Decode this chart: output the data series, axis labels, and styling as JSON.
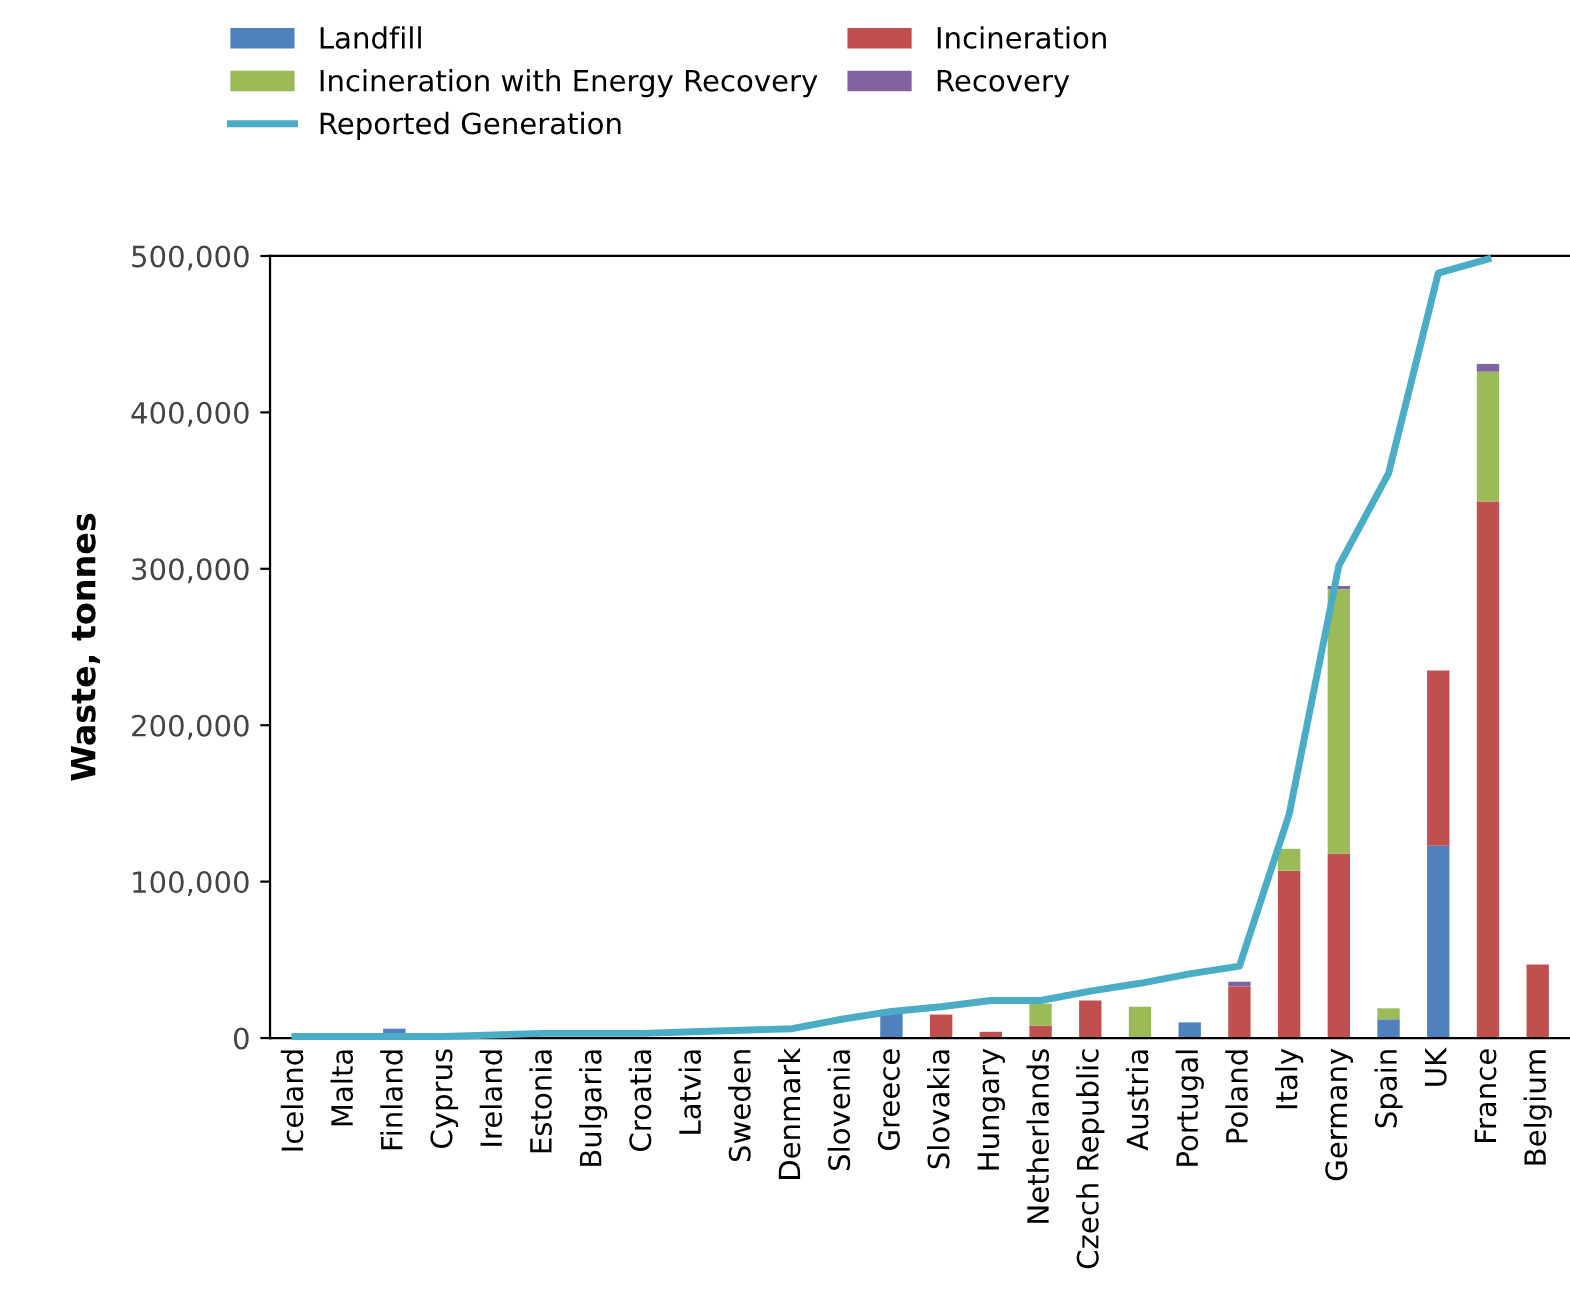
{
  "chart_data": {
    "type": "bar",
    "stacked": true,
    "ylabel": "Waste, tonnes",
    "legend": "top",
    "grid": false,
    "categories": [
      "Iceland",
      "Malta",
      "Finland",
      "Cyprus",
      "Ireland",
      "Estonia",
      "Bulgaria",
      "Croatia",
      "Latvia",
      "Sweden",
      "Denmark",
      "Slovenia",
      "Greece",
      "Slovakia",
      "Hungary",
      "Netherlands",
      "Czech Republic",
      "Austria",
      "Portugal",
      "Poland",
      "Italy",
      "Germany",
      "Spain",
      "UK",
      "France",
      "Belgium"
    ],
    "ylim": [
      0,
      500000
    ],
    "yticks": [
      {
        "value": 0,
        "label": "0"
      },
      {
        "value": 100000,
        "label": "100,000"
      },
      {
        "value": 200000,
        "label": "200,000"
      },
      {
        "value": 300000,
        "label": "300,000"
      },
      {
        "value": 400000,
        "label": "400,000"
      },
      {
        "value": 500000,
        "label": "500,000"
      }
    ],
    "series": [
      {
        "name": "Landfill",
        "color": "#4f81bd",
        "values": [
          null,
          null,
          6000,
          null,
          null,
          null,
          null,
          null,
          null,
          null,
          null,
          null,
          16000,
          null,
          null,
          null,
          null,
          null,
          10000,
          null,
          null,
          null,
          12000,
          123000,
          null,
          null
        ]
      },
      {
        "name": "Incineration",
        "color": "#c0504d",
        "values": [
          null,
          null,
          null,
          null,
          null,
          null,
          null,
          null,
          null,
          null,
          null,
          null,
          null,
          15000,
          4000,
          8000,
          24000,
          null,
          null,
          33000,
          107000,
          118000,
          null,
          112000,
          343000,
          47000
        ]
      },
      {
        "name": "Incineration with Energy Recovery",
        "color": "#9bbb59",
        "values": [
          null,
          null,
          null,
          null,
          null,
          null,
          null,
          null,
          null,
          null,
          null,
          null,
          null,
          null,
          null,
          14000,
          null,
          20000,
          null,
          null,
          14000,
          169000,
          7000,
          null,
          83000,
          null
        ]
      },
      {
        "name": "Recovery",
        "color": "#8064a2",
        "values": [
          null,
          null,
          null,
          null,
          null,
          null,
          null,
          null,
          null,
          null,
          null,
          null,
          null,
          null,
          null,
          null,
          null,
          null,
          null,
          3000,
          null,
          2000,
          null,
          null,
          5000,
          null
        ]
      },
      {
        "name": "Reported Generation",
        "type": "line",
        "color": "#4bacc6",
        "values": [
          1000,
          1000,
          1000,
          1000,
          2000,
          3000,
          3000,
          3000,
          4000,
          5000,
          6000,
          12000,
          17000,
          20000,
          24000,
          24000,
          30000,
          35000,
          41000,
          46000,
          143000,
          302000,
          361000,
          489000,
          498000,
          null
        ]
      }
    ]
  }
}
